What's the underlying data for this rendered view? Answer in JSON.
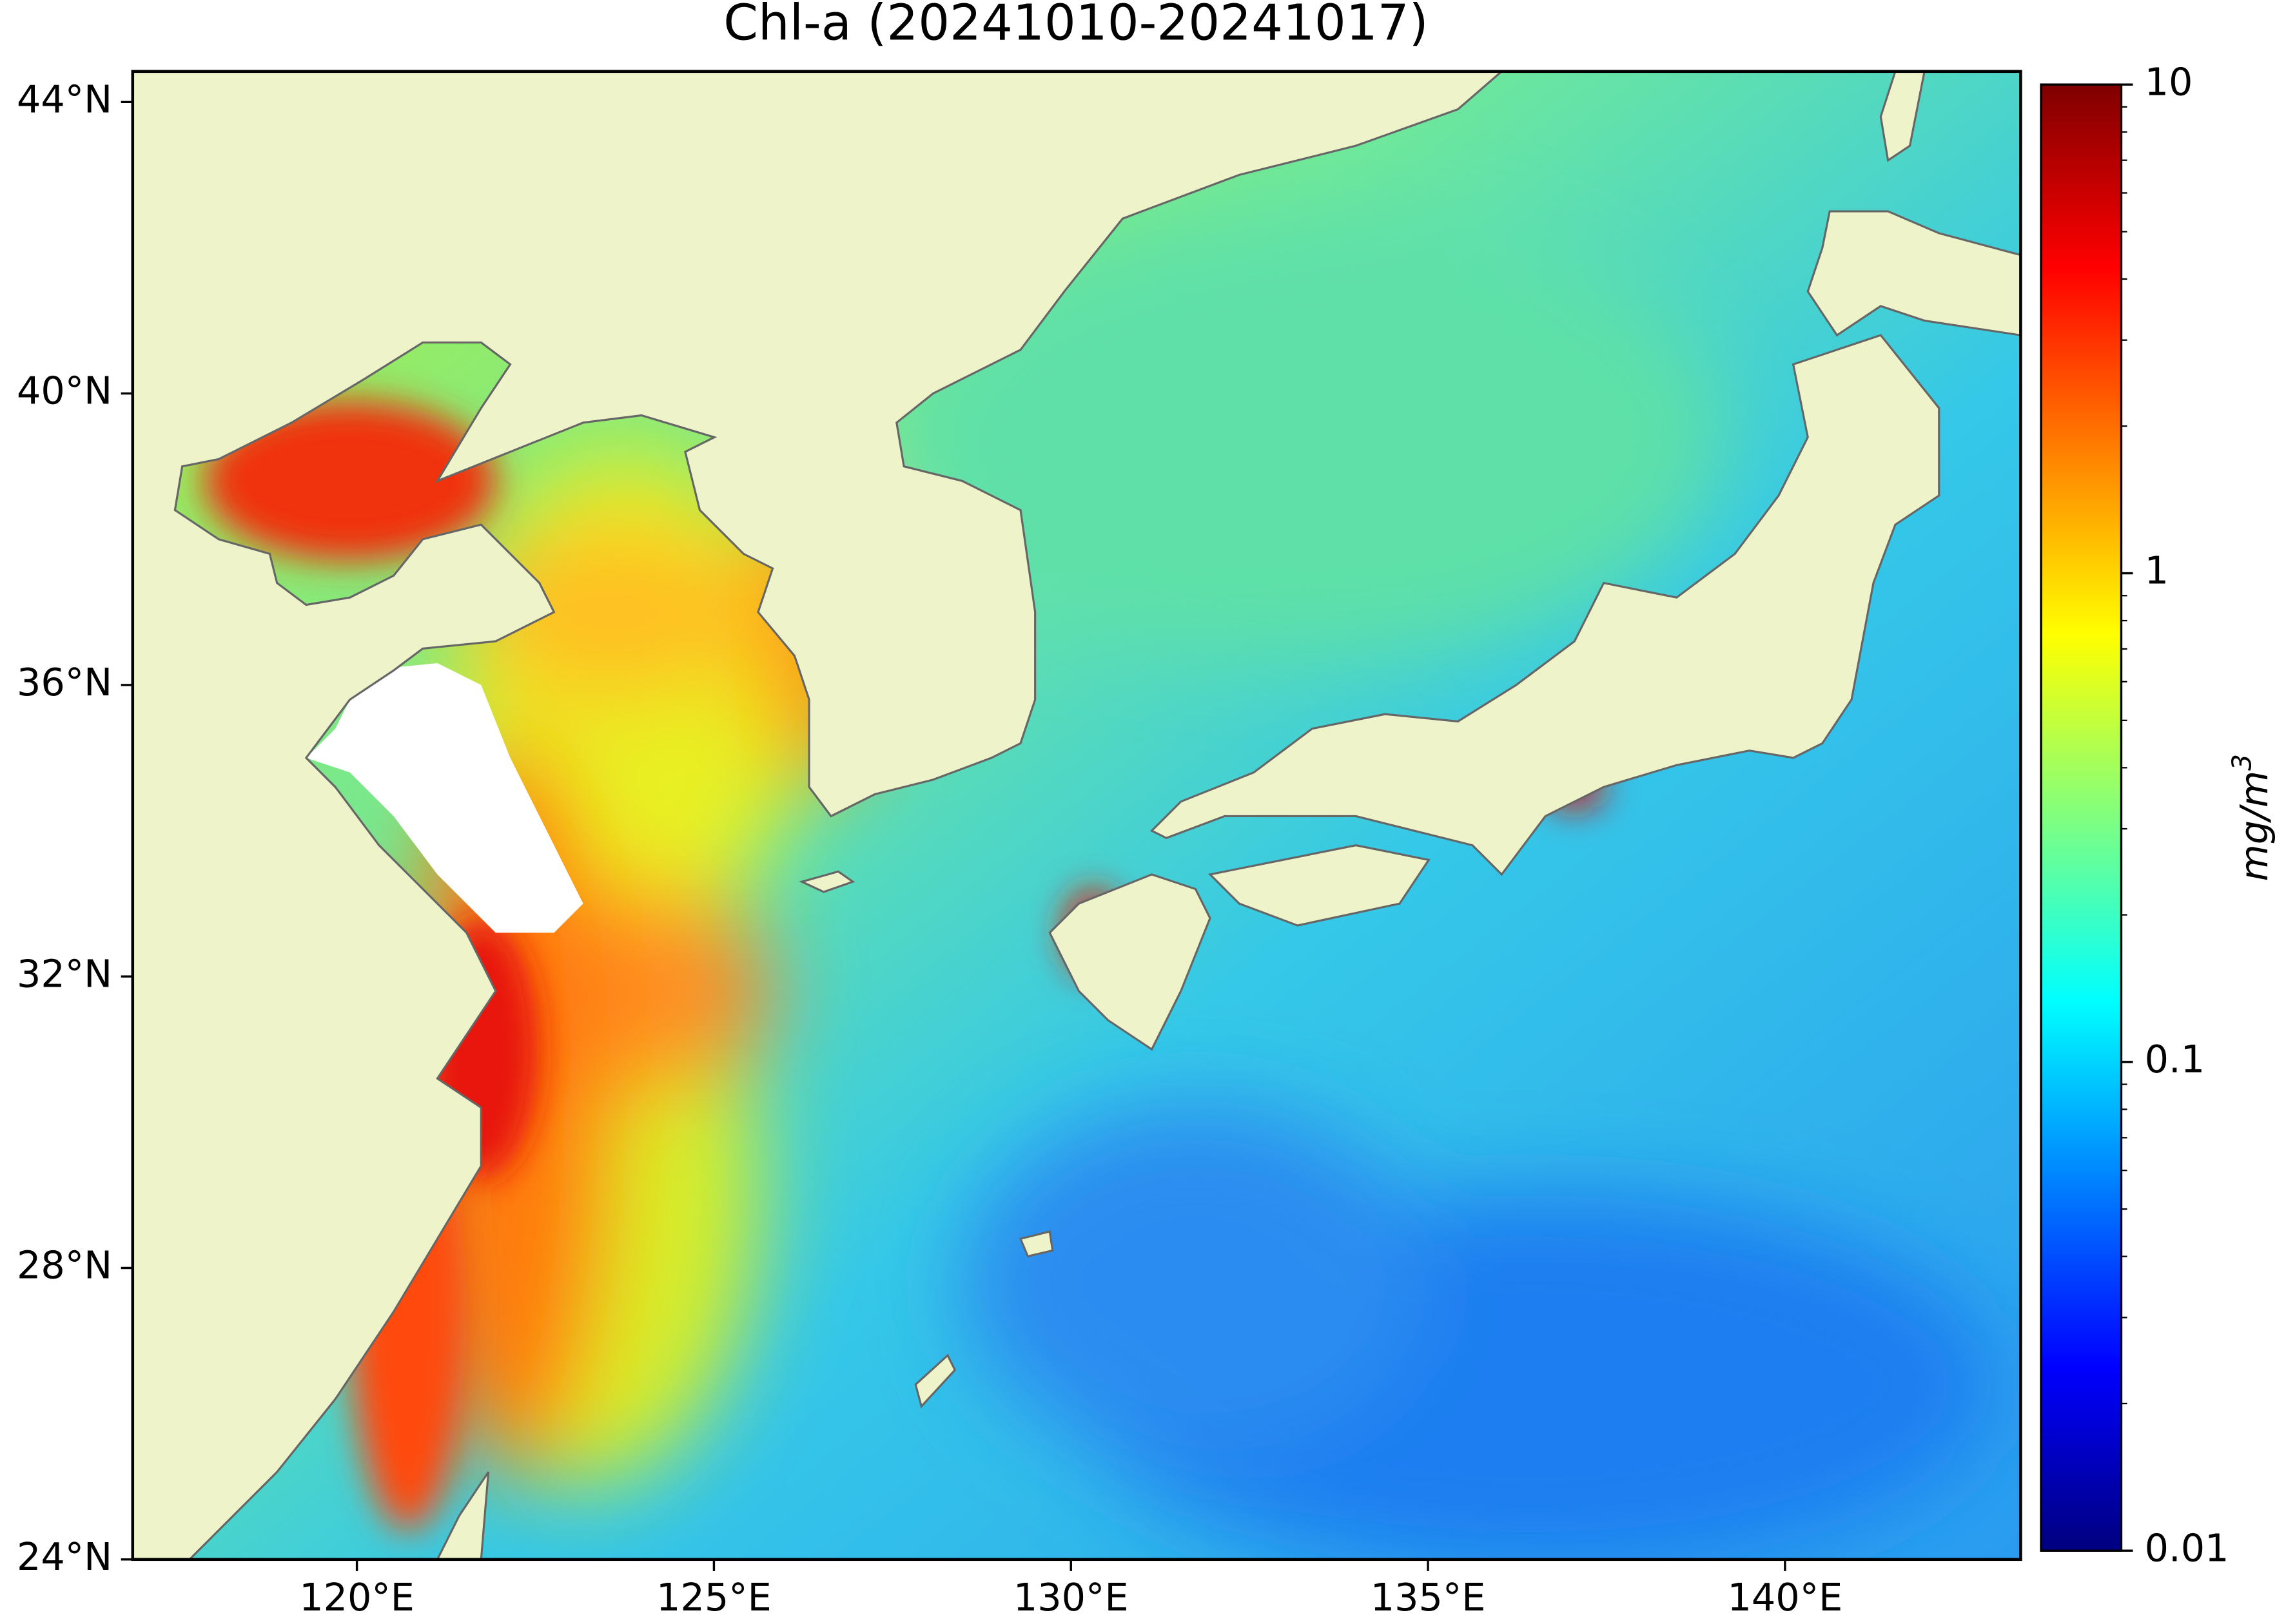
{
  "chart_data": {
    "type": "map",
    "title": "Chl-a (20241010-20241017)",
    "xlim": [
      116.86,
      143.3
    ],
    "ylim": [
      24,
      44.42
    ],
    "xticks": [
      {
        "value": 120,
        "label": "120°E"
      },
      {
        "value": 125,
        "label": "125°E"
      },
      {
        "value": 130,
        "label": "130°E"
      },
      {
        "value": 135,
        "label": "135°E"
      },
      {
        "value": 140,
        "label": "140°E"
      }
    ],
    "yticks": [
      {
        "value": 24,
        "label": "24°N"
      },
      {
        "value": 28,
        "label": "28°N"
      },
      {
        "value": 32,
        "label": "32°N"
      },
      {
        "value": 36,
        "label": "36°N"
      },
      {
        "value": 40,
        "label": "40°N"
      },
      {
        "value": 44,
        "label": "44°N"
      }
    ],
    "land_color": "#eff3c9",
    "colorbar": {
      "label": "mg/m",
      "label_superscript": "3",
      "lim": [
        0.01,
        10
      ],
      "ticks": [
        0.01,
        0.1,
        1,
        10
      ],
      "scale": "log",
      "colormap": "jet",
      "minor_ticks": true
    }
  }
}
